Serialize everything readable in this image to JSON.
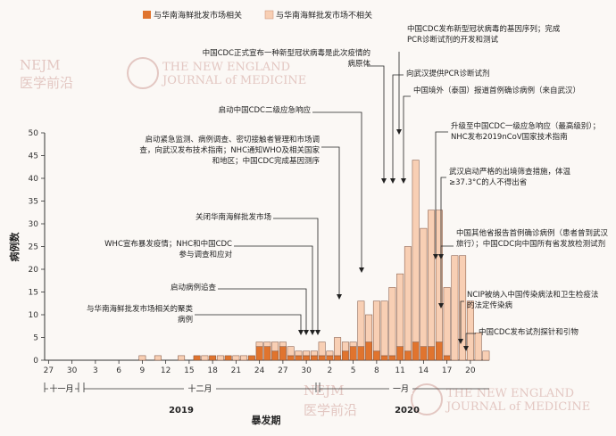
{
  "chart_data": {
    "type": "bar",
    "stacked": true,
    "legend": {
      "placement": "top-left",
      "items": [
        {
          "label": "与华南海鲜批发市场相关",
          "color": "#e0742e"
        },
        {
          "label": "与华南海鲜批发市场不相关",
          "color": "#f8cfb4"
        }
      ]
    },
    "ylabel": "病例数",
    "xlabel": "暴发期",
    "ylim": [
      0,
      50
    ],
    "yticks": [
      0,
      5,
      10,
      15,
      20,
      25,
      30,
      35,
      40,
      45,
      50
    ],
    "xtick_labels": [
      "27",
      "30",
      "3",
      "6",
      "9",
      "12",
      "15",
      "18",
      "21",
      "24",
      "27",
      "30",
      "2",
      "5",
      "8",
      "11",
      "14",
      "17",
      "20"
    ],
    "month_labels": [
      "十一月",
      "十二月",
      "一月"
    ],
    "year_labels": [
      "2019",
      "2020"
    ],
    "start_date": "2019-11-27",
    "end_date": "2020-01-22",
    "series": [
      {
        "name": "与华南海鲜批发市场相关",
        "color": "#e0742e",
        "values": [
          0,
          0,
          0,
          0,
          0,
          0,
          0,
          0,
          0,
          0,
          0,
          0,
          0,
          0,
          0,
          0,
          0,
          0,
          0,
          1,
          0,
          1,
          0,
          1,
          0,
          0,
          1,
          3,
          3,
          2,
          3,
          1,
          1,
          1,
          1,
          1,
          1,
          1,
          2,
          3,
          3,
          4,
          2,
          1,
          1,
          3,
          2,
          4,
          3,
          3,
          4,
          1,
          0,
          0,
          0,
          0,
          0
        ]
      },
      {
        "name": "与华南海鲜批发市场不相关",
        "color": "#f8cfb4",
        "values": [
          0,
          0,
          0,
          0,
          0,
          0,
          0,
          0,
          0,
          0,
          0,
          0,
          1,
          0,
          1,
          0,
          0,
          1,
          0,
          0,
          1,
          0,
          1,
          0,
          1,
          1,
          0,
          1,
          1,
          2,
          1,
          2,
          1,
          1,
          1,
          3,
          1,
          4,
          2,
          1,
          10,
          6,
          11,
          12,
          15,
          16,
          23,
          40,
          26,
          30,
          29,
          15,
          23,
          23,
          13,
          6,
          2
        ]
      }
    ],
    "annotations": [
      "中国CDC发布新型冠状病毒的基因序列；完成PCR诊断试剂的开发和测试",
      "中国CDC正式宣布一种新型冠状病毒是此次疫情的病原体",
      "向武汉提供PCR诊断试剂",
      "中国境外（泰国）报道首例确诊病例（来自武汉）",
      "启动中国CDC二级应急响应",
      "升级至中国CDC一级应急响应（最高级别）；NHC发布2019nCoV国家技术指南",
      "启动紧急监测、病例调查、密切接触者管理和市场调查，向武汉发布技术指南；NHC通知WHO及相关国家和地区；中国CDC完成基因测序",
      "武汉启动严格的出境筛查措施，体温≥37.3°C的人不得出省",
      "关闭华南海鲜批发市场",
      "WHC宣布暴发疫情；NHC和中国CDC参与调查和应对",
      "中国其他省报告首例确诊病例（患者曾到武汉旅行）；中国CDC向中国所有省发放检测试剂",
      "启动病例追查",
      "NCIP被纳入中国传染病法和卫生检疫法的法定传染病",
      "与华南海鲜批发市场相关的聚类病例",
      "中国CDC发布试剂探针和引物"
    ]
  },
  "watermark": {
    "nejm": "NEJM",
    "cn": "医学前沿",
    "line1": "THE NEW ENGLAND",
    "line2": "JOURNAL of MEDICINE"
  }
}
